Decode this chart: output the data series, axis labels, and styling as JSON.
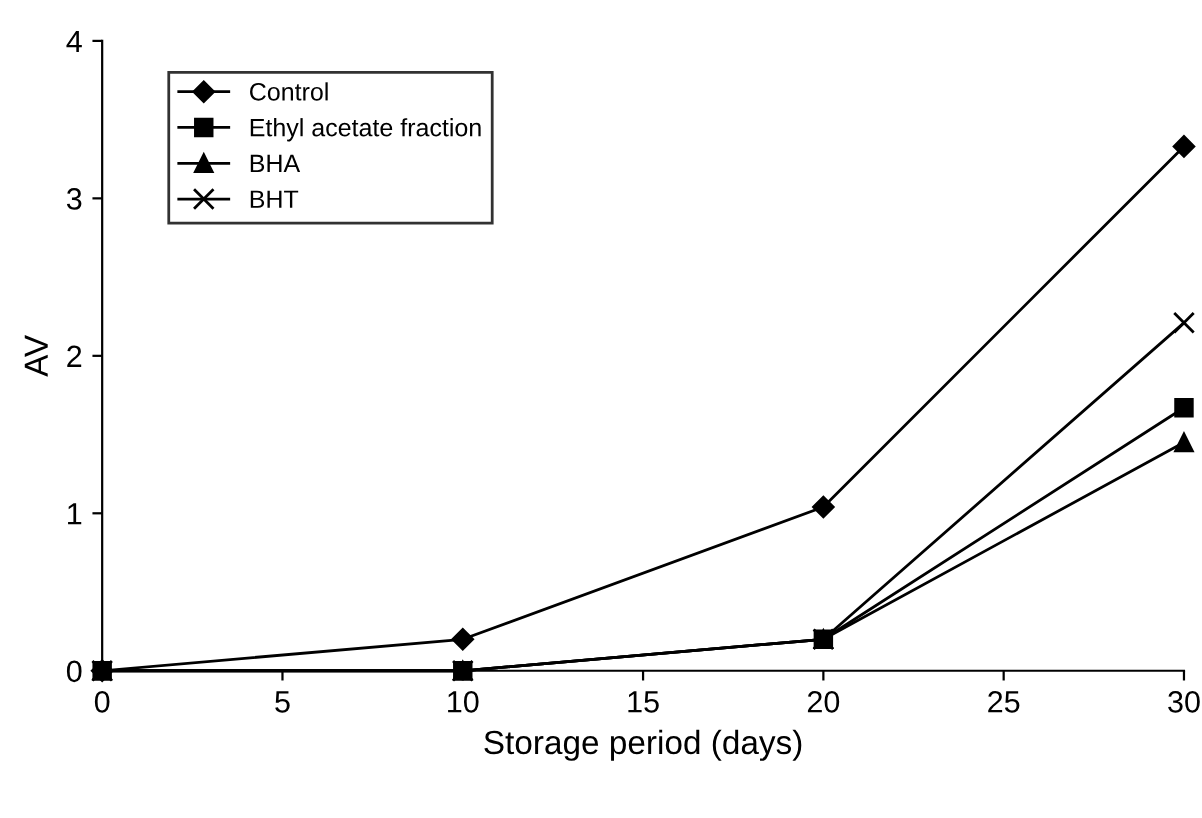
{
  "chart_data": {
    "type": "line",
    "xlabel": "Storage period (days)",
    "ylabel": "AV",
    "x": [
      0,
      10,
      20,
      30
    ],
    "series": [
      {
        "name": "Control",
        "color": "#000000",
        "marker": "diamond",
        "values": [
          0,
          0.2,
          1.04,
          3.33
        ]
      },
      {
        "name": "Ethyl acetate fraction",
        "color": "#000000",
        "marker": "square",
        "values": [
          0,
          0,
          0.2,
          1.67
        ]
      },
      {
        "name": "BHA",
        "color": "#000000",
        "marker": "triangle",
        "values": [
          0,
          0,
          0.2,
          1.45
        ]
      },
      {
        "name": "BHT",
        "color": "#000000",
        "marker": "cross",
        "values": [
          0,
          0,
          0.2,
          2.21
        ]
      }
    ],
    "xlim": [
      0,
      30
    ],
    "xticks": [
      0,
      5,
      10,
      15,
      20,
      25,
      30
    ],
    "ylim": [
      0,
      4
    ],
    "yticks": [
      0,
      1,
      2,
      3,
      4
    ],
    "grid": false,
    "legend": "top left",
    "line_style": "solid"
  }
}
